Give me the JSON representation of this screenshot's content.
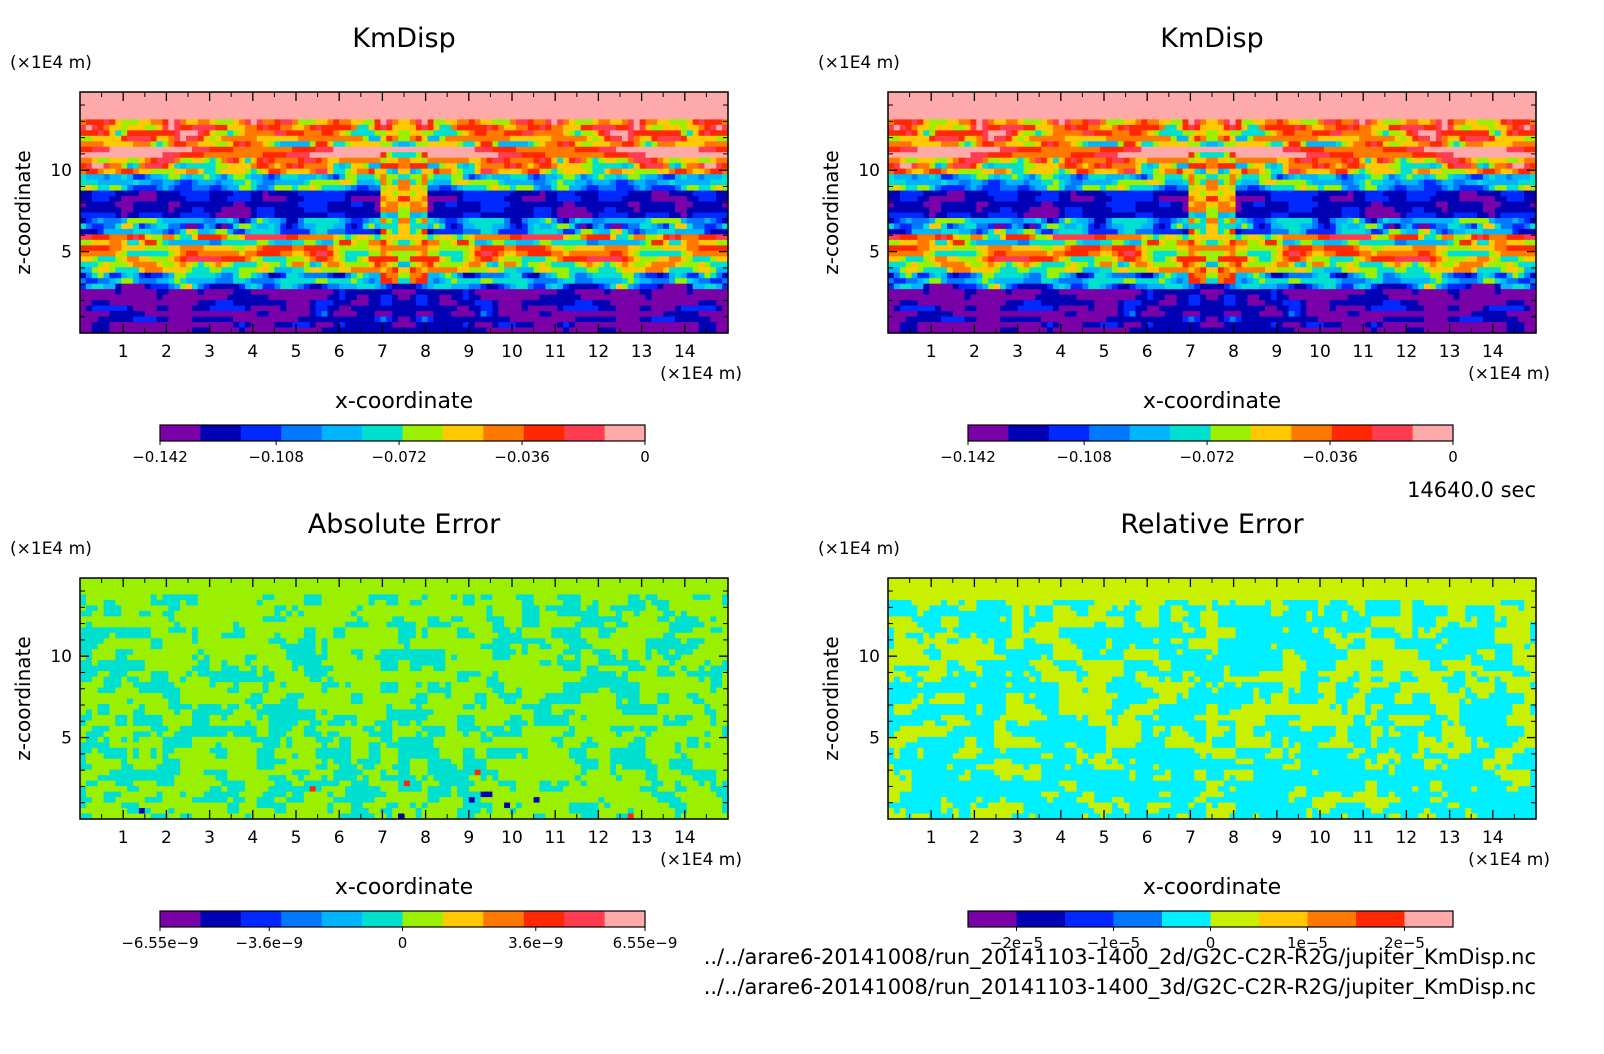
{
  "chart_data": [
    {
      "type": "heatmap",
      "title": "KmDisp",
      "xlabel": "x-coordinate",
      "ylabel": "z-coordinate",
      "x_unit": "(×1E4 m)",
      "y_unit": "(×1E4 m)",
      "xlim": [
        0,
        15
      ],
      "ylim": [
        0,
        14.8
      ],
      "xticks": [
        "1",
        "2",
        "3",
        "4",
        "5",
        "6",
        "7",
        "8",
        "9",
        "10",
        "11",
        "12",
        "13",
        "14"
      ],
      "yticks": [
        "5",
        "10"
      ],
      "colorbar": {
        "min": -0.142,
        "max": 0,
        "ticks": [
          -0.142,
          -0.108,
          -0.072,
          -0.036,
          0
        ],
        "tick_labels": [
          "−0.142",
          "−0.108",
          "−0.072",
          "−0.036",
          "0"
        ],
        "colors": [
          "#7a00a8",
          "#0000b4",
          "#0028ff",
          "#0078ff",
          "#00b4ff",
          "#00e0d0",
          "#9af000",
          "#ffc800",
          "#ff7800",
          "#ff2800",
          "#ff3c50",
          "#ffaaaa"
        ]
      }
    },
    {
      "type": "heatmap",
      "title": "KmDisp",
      "xlabel": "x-coordinate",
      "ylabel": "z-coordinate",
      "x_unit": "(×1E4 m)",
      "y_unit": "(×1E4 m)",
      "xlim": [
        0,
        15
      ],
      "ylim": [
        0,
        14.8
      ],
      "xticks": [
        "1",
        "2",
        "3",
        "4",
        "5",
        "6",
        "7",
        "8",
        "9",
        "10",
        "11",
        "12",
        "13",
        "14"
      ],
      "yticks": [
        "5",
        "10"
      ],
      "colorbar": {
        "min": -0.142,
        "max": 0,
        "ticks": [
          -0.142,
          -0.108,
          -0.072,
          -0.036,
          0
        ],
        "tick_labels": [
          "−0.142",
          "−0.108",
          "−0.072",
          "−0.036",
          "0"
        ],
        "colors": [
          "#7a00a8",
          "#0000b4",
          "#0028ff",
          "#0078ff",
          "#00b4ff",
          "#00e0d0",
          "#9af000",
          "#ffc800",
          "#ff7800",
          "#ff2800",
          "#ff3c50",
          "#ffaaaa"
        ]
      }
    },
    {
      "type": "heatmap",
      "title": "Absolute Error",
      "xlabel": "x-coordinate",
      "ylabel": "z-coordinate",
      "x_unit": "(×1E4 m)",
      "y_unit": "(×1E4 m)",
      "xlim": [
        0,
        15
      ],
      "ylim": [
        0,
        14.8
      ],
      "xticks": [
        "1",
        "2",
        "3",
        "4",
        "5",
        "6",
        "7",
        "8",
        "9",
        "10",
        "11",
        "12",
        "13",
        "14"
      ],
      "yticks": [
        "5",
        "10"
      ],
      "colorbar": {
        "min": -6.55e-09,
        "max": 6.55e-09,
        "ticks": [
          -6.55e-09,
          -3.6e-09,
          0,
          3.6e-09,
          6.55e-09
        ],
        "tick_labels": [
          "−6.55e−9",
          "−3.6e−9",
          "0",
          "3.6e−9",
          "6.55e−9"
        ],
        "colors": [
          "#7a00a8",
          "#0000b4",
          "#0028ff",
          "#0078ff",
          "#00b4ff",
          "#00e0d0",
          "#9af000",
          "#ffc800",
          "#ff7800",
          "#ff2800",
          "#ff3c50",
          "#ffaaaa"
        ]
      }
    },
    {
      "type": "heatmap",
      "title": "Relative Error",
      "xlabel": "x-coordinate",
      "ylabel": "z-coordinate",
      "x_unit": "(×1E4 m)",
      "y_unit": "(×1E4 m)",
      "xlim": [
        0,
        15
      ],
      "ylim": [
        0,
        14.8
      ],
      "xticks": [
        "1",
        "2",
        "3",
        "4",
        "5",
        "6",
        "7",
        "8",
        "9",
        "10",
        "11",
        "12",
        "13",
        "14"
      ],
      "yticks": [
        "5",
        "10"
      ],
      "colorbar": {
        "min": -2.5e-05,
        "max": 2.5e-05,
        "ticks": [
          -2e-05,
          -1e-05,
          0,
          1e-05,
          2e-05
        ],
        "tick_labels": [
          "−2e−5",
          "−1e−5",
          "0",
          "1e−5",
          "2e−5"
        ],
        "colors": [
          "#7a00a8",
          "#0000b4",
          "#0028ff",
          "#0078ff",
          "#00f0ff",
          "#c8f000",
          "#ffc800",
          "#ff7800",
          "#ff2800",
          "#ffaaaa"
        ]
      }
    }
  ],
  "time_label": "14640.0 sec",
  "files": [
    "../../arare6-20141008/run_20141103-1400_2d/G2C-C2R-R2G/jupiter_KmDisp.nc",
    "../../arare6-20141008/run_20141103-1400_3d/G2C-C2R-R2G/jupiter_KmDisp.nc"
  ]
}
